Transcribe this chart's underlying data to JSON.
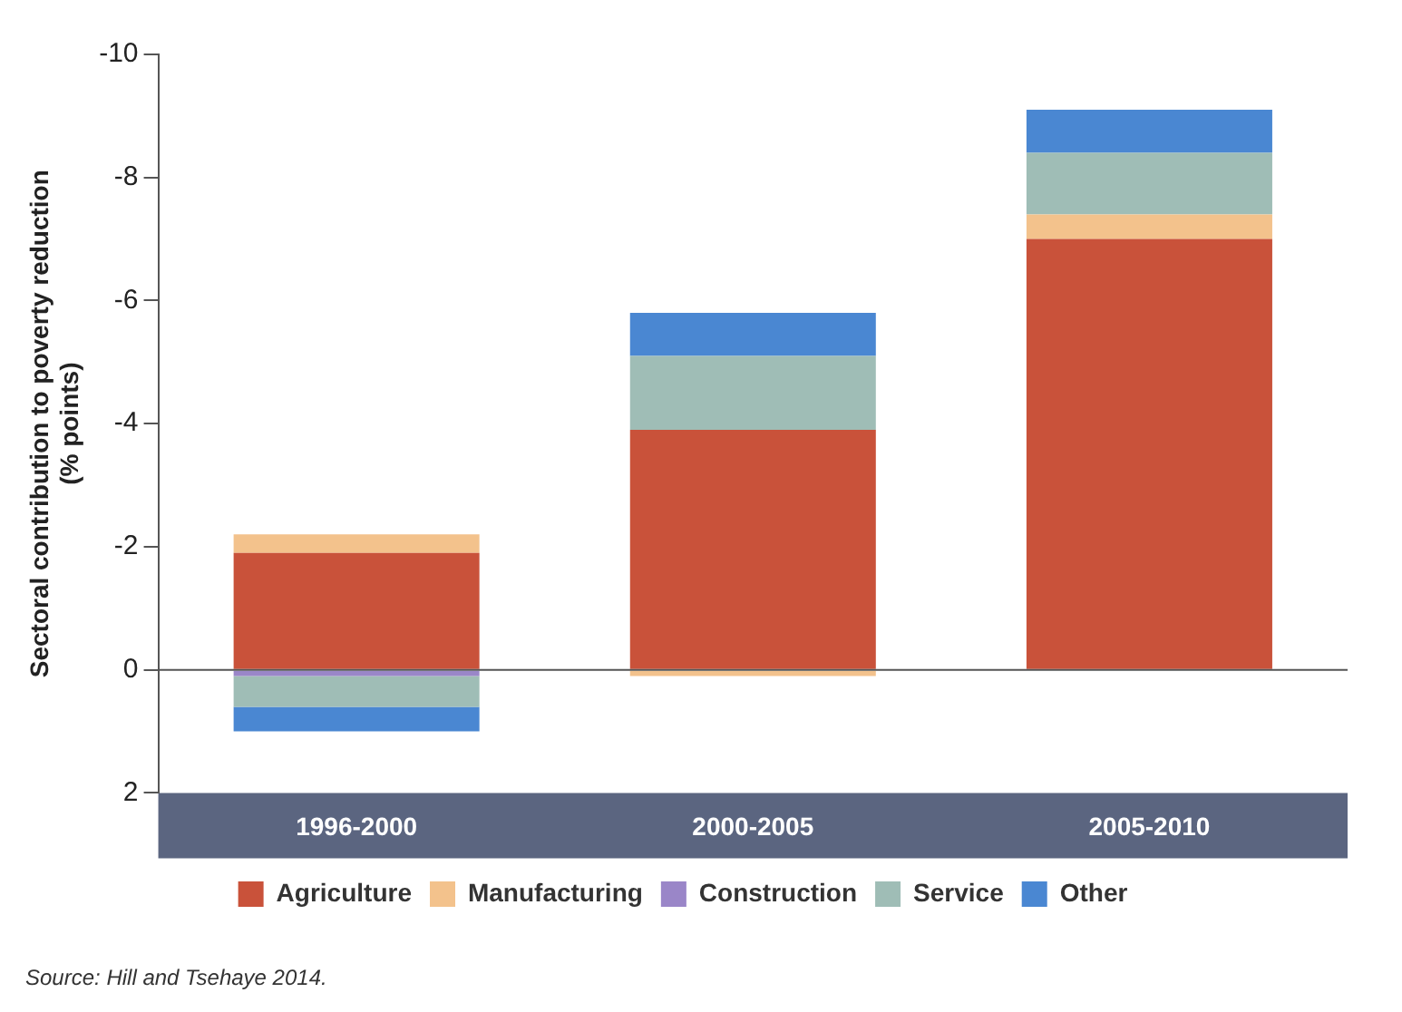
{
  "chart_data": {
    "type": "bar",
    "stacked": true,
    "ylabel": "Sectoral contribution to poverty reduction\n(% points)",
    "categories": [
      "1996-2000",
      "2000-2005",
      "2005-2010"
    ],
    "series": [
      {
        "name": "Agriculture",
        "color": "#c9523a",
        "values": [
          -1.9,
          -3.9,
          -7.0
        ]
      },
      {
        "name": "Manufacturing",
        "color": "#f3c28c",
        "values": [
          -0.3,
          0.1,
          -0.4
        ]
      },
      {
        "name": "Construction",
        "color": "#9a86c8",
        "values": [
          0.1,
          null,
          null
        ]
      },
      {
        "name": "Service",
        "color": "#9fbdb6",
        "values": [
          0.5,
          -1.2,
          -1.0
        ]
      },
      {
        "name": "Other",
        "color": "#4a87d2",
        "values": [
          0.4,
          -0.7,
          -0.7
        ]
      }
    ],
    "ylim": [
      2,
      -10
    ],
    "yticks": [
      -10,
      -8,
      -6,
      -4,
      -2,
      0,
      2
    ],
    "grid": false,
    "legend": "bottom",
    "ref_lines": [
      {
        "axis": "y",
        "value": 0
      }
    ],
    "annotations": [
      "Source: Hill and Tsehaye 2014."
    ]
  }
}
